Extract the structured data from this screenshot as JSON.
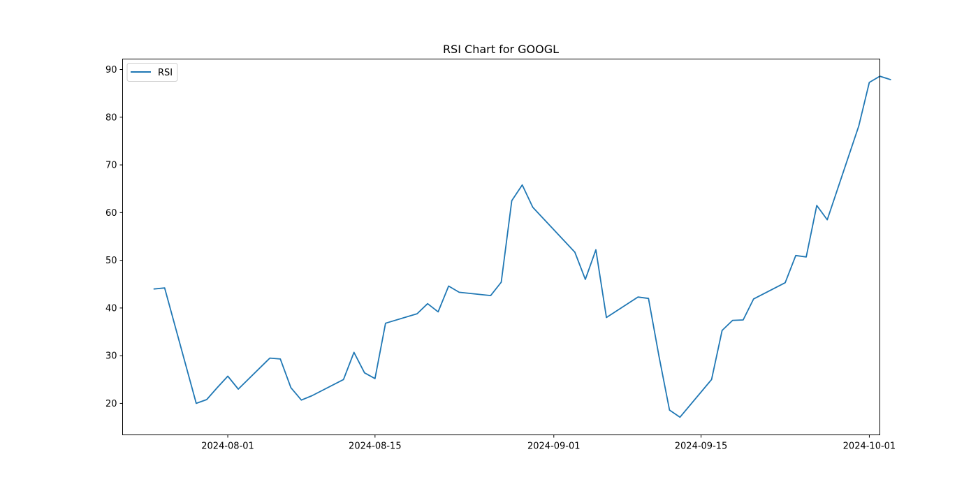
{
  "chart_data": {
    "type": "line",
    "title": "RSI Chart for GOOGL",
    "xlabel": "",
    "ylabel": "",
    "grid": false,
    "legend_position": "top-left",
    "xlim": [
      "2024-07-22",
      "2024-10-02"
    ],
    "ylim": [
      13.4,
      92.2
    ],
    "x_ticks": [
      "2024-08-01",
      "2024-08-15",
      "2024-09-01",
      "2024-09-15",
      "2024-10-01"
    ],
    "y_ticks": [
      20,
      30,
      40,
      50,
      60,
      70,
      80,
      90
    ],
    "series": [
      {
        "name": "RSI",
        "color": "#1f77b4",
        "points": [
          [
            "2024-07-25",
            44.0
          ],
          [
            "2024-07-26",
            44.2
          ],
          [
            "2024-07-29",
            20.0
          ],
          [
            "2024-07-30",
            20.8
          ],
          [
            "2024-07-31",
            23.3
          ],
          [
            "2024-08-01",
            25.7
          ],
          [
            "2024-08-02",
            23.0
          ],
          [
            "2024-08-05",
            29.5
          ],
          [
            "2024-08-06",
            29.3
          ],
          [
            "2024-08-07",
            23.3
          ],
          [
            "2024-08-08",
            20.7
          ],
          [
            "2024-08-09",
            21.6
          ],
          [
            "2024-08-12",
            25.0
          ],
          [
            "2024-08-13",
            30.7
          ],
          [
            "2024-08-14",
            26.4
          ],
          [
            "2024-08-15",
            25.2
          ],
          [
            "2024-08-16",
            36.8
          ],
          [
            "2024-08-19",
            38.8
          ],
          [
            "2024-08-20",
            40.9
          ],
          [
            "2024-08-21",
            39.2
          ],
          [
            "2024-08-22",
            44.6
          ],
          [
            "2024-08-23",
            43.3
          ],
          [
            "2024-08-26",
            42.6
          ],
          [
            "2024-08-27",
            45.4
          ],
          [
            "2024-08-28",
            62.5
          ],
          [
            "2024-08-29",
            65.8
          ],
          [
            "2024-08-30",
            61.1
          ],
          [
            "2024-09-03",
            51.7
          ],
          [
            "2024-09-04",
            46.0
          ],
          [
            "2024-09-05",
            52.2
          ],
          [
            "2024-09-06",
            38.0
          ],
          [
            "2024-09-09",
            42.3
          ],
          [
            "2024-09-10",
            42.0
          ],
          [
            "2024-09-11",
            29.9
          ],
          [
            "2024-09-12",
            18.6
          ],
          [
            "2024-09-13",
            17.1
          ],
          [
            "2024-09-16",
            25.0
          ],
          [
            "2024-09-17",
            35.3
          ],
          [
            "2024-09-18",
            37.4
          ],
          [
            "2024-09-19",
            37.5
          ],
          [
            "2024-09-20",
            41.9
          ],
          [
            "2024-09-23",
            45.3
          ],
          [
            "2024-09-24",
            51.0
          ],
          [
            "2024-09-25",
            50.7
          ],
          [
            "2024-09-26",
            61.5
          ],
          [
            "2024-09-27",
            58.5
          ],
          [
            "2024-09-30",
            78.2
          ],
          [
            "2024-10-01",
            87.3
          ],
          [
            "2024-10-02",
            88.6
          ],
          [
            "2024-10-03",
            87.9
          ]
        ]
      }
    ]
  }
}
